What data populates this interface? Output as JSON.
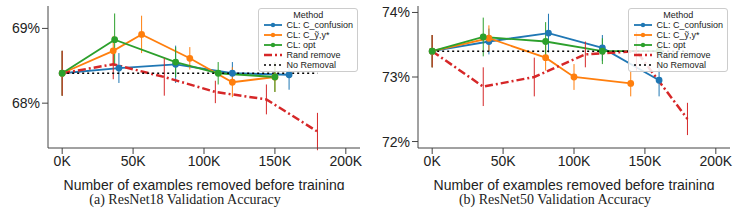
{
  "chart_data": [
    {
      "type": "line",
      "title": "(a) ResNet18 Validation Accuracy",
      "x_label": "Number of examples removed before training",
      "legend_title": "Method",
      "legend": "upper right",
      "xlim": [
        -10000,
        210000
      ],
      "xticks": [
        {
          "value": 0,
          "label": "0K"
        },
        {
          "value": 50000,
          "label": "50K"
        },
        {
          "value": 100000,
          "label": "100K"
        },
        {
          "value": 150000,
          "label": "150K"
        },
        {
          "value": 200000,
          "label": "200K"
        }
      ],
      "ylim": [
        67.4,
        69.3
      ],
      "yticks": [
        {
          "value": 68,
          "label": "68%"
        },
        {
          "value": 69,
          "label": "69%"
        }
      ],
      "series": [
        {
          "name": "CL: C_confusion",
          "color": "#1f77b4",
          "marker": "o",
          "line_style": "solid",
          "x": [
            0,
            40000,
            80000,
            120000,
            160000
          ],
          "values": [
            68.4,
            68.47,
            68.52,
            68.4,
            68.38
          ],
          "errors": [
            0.3,
            0.2,
            0.25,
            0.15,
            0.2
          ]
        },
        {
          "name": "CL: C_ỹ,y*",
          "color": "#ff7f0e",
          "marker": "o",
          "line_style": "solid",
          "x": [
            0,
            36000,
            56000,
            90000,
            120000,
            150000
          ],
          "values": [
            68.4,
            68.7,
            68.92,
            68.6,
            68.28,
            68.35
          ],
          "errors": [
            0.3,
            0.2,
            0.25,
            0.15,
            0.2,
            0.2
          ]
        },
        {
          "name": "CL: opt",
          "color": "#2ca02c",
          "marker": "o",
          "line_style": "solid",
          "x": [
            0,
            37000,
            80000,
            110000,
            150000
          ],
          "values": [
            68.4,
            68.85,
            68.55,
            68.4,
            68.35
          ],
          "errors": [
            0.3,
            0.35,
            0.2,
            0.15,
            0.2
          ]
        },
        {
          "name": "Rand remove",
          "color": "#d62728",
          "marker": "none",
          "line_style": "dashdot",
          "x": [
            0,
            36000,
            72000,
            108000,
            144000,
            180000
          ],
          "values": [
            68.4,
            68.52,
            68.35,
            68.15,
            68.05,
            67.62
          ],
          "errors": [
            0.3,
            0.2,
            0.25,
            0.15,
            0.2,
            0.25
          ]
        },
        {
          "name": "No Removal",
          "color": "#000000",
          "marker": "none",
          "line_style": "dotted",
          "x": [
            0,
            180000
          ],
          "values": [
            68.4,
            68.4
          ]
        }
      ]
    },
    {
      "type": "line",
      "title": "(b) ResNet50 Validation Accuracy",
      "x_label": "Number of examples removed before training",
      "legend_title": "Method",
      "legend": "upper right",
      "xlim": [
        -10000,
        210000
      ],
      "xticks": [
        {
          "value": 0,
          "label": "0K"
        },
        {
          "value": 50000,
          "label": "50K"
        },
        {
          "value": 100000,
          "label": "100K"
        },
        {
          "value": 150000,
          "label": "150K"
        },
        {
          "value": 200000,
          "label": "200K"
        }
      ],
      "ylim": [
        71.9,
        74.1
      ],
      "yticks": [
        {
          "value": 72,
          "label": "72%"
        },
        {
          "value": 73,
          "label": "73%"
        },
        {
          "value": 74,
          "label": "74%"
        }
      ],
      "series": [
        {
          "name": "CL: C_confusion",
          "color": "#1f77b4",
          "marker": "o",
          "line_style": "solid",
          "x": [
            0,
            40000,
            82000,
            120000,
            160000
          ],
          "values": [
            73.4,
            73.55,
            73.68,
            73.45,
            72.95
          ],
          "errors": [
            0.25,
            0.2,
            0.3,
            0.2,
            0.25
          ]
        },
        {
          "name": "CL: C_ỹ,y*",
          "color": "#ff7f0e",
          "marker": "o",
          "line_style": "solid",
          "x": [
            0,
            40000,
            80000,
            100000,
            140000
          ],
          "values": [
            73.4,
            73.6,
            73.3,
            73.0,
            72.9
          ],
          "errors": [
            0.25,
            0.2,
            0.2,
            0.2,
            0.2
          ]
        },
        {
          "name": "CL: opt",
          "color": "#2ca02c",
          "marker": "o",
          "line_style": "solid",
          "x": [
            0,
            36000,
            80000,
            120000,
            160000
          ],
          "values": [
            73.4,
            73.62,
            73.55,
            73.4,
            73.4
          ],
          "errors": [
            0.25,
            0.3,
            0.3,
            0.2,
            0.2
          ]
        },
        {
          "name": "Rand remove",
          "color": "#d62728",
          "marker": "none",
          "line_style": "dashdot",
          "x": [
            0,
            36000,
            72000,
            108000,
            144000,
            180000
          ],
          "values": [
            73.4,
            72.85,
            73.0,
            73.35,
            73.4,
            72.35
          ],
          "errors": [
            0.25,
            0.3,
            0.3,
            0.2,
            0.3,
            0.25
          ]
        },
        {
          "name": "No Removal",
          "color": "#000000",
          "marker": "none",
          "line_style": "dotted",
          "x": [
            0,
            180000
          ],
          "values": [
            73.4,
            73.4
          ]
        }
      ]
    }
  ]
}
